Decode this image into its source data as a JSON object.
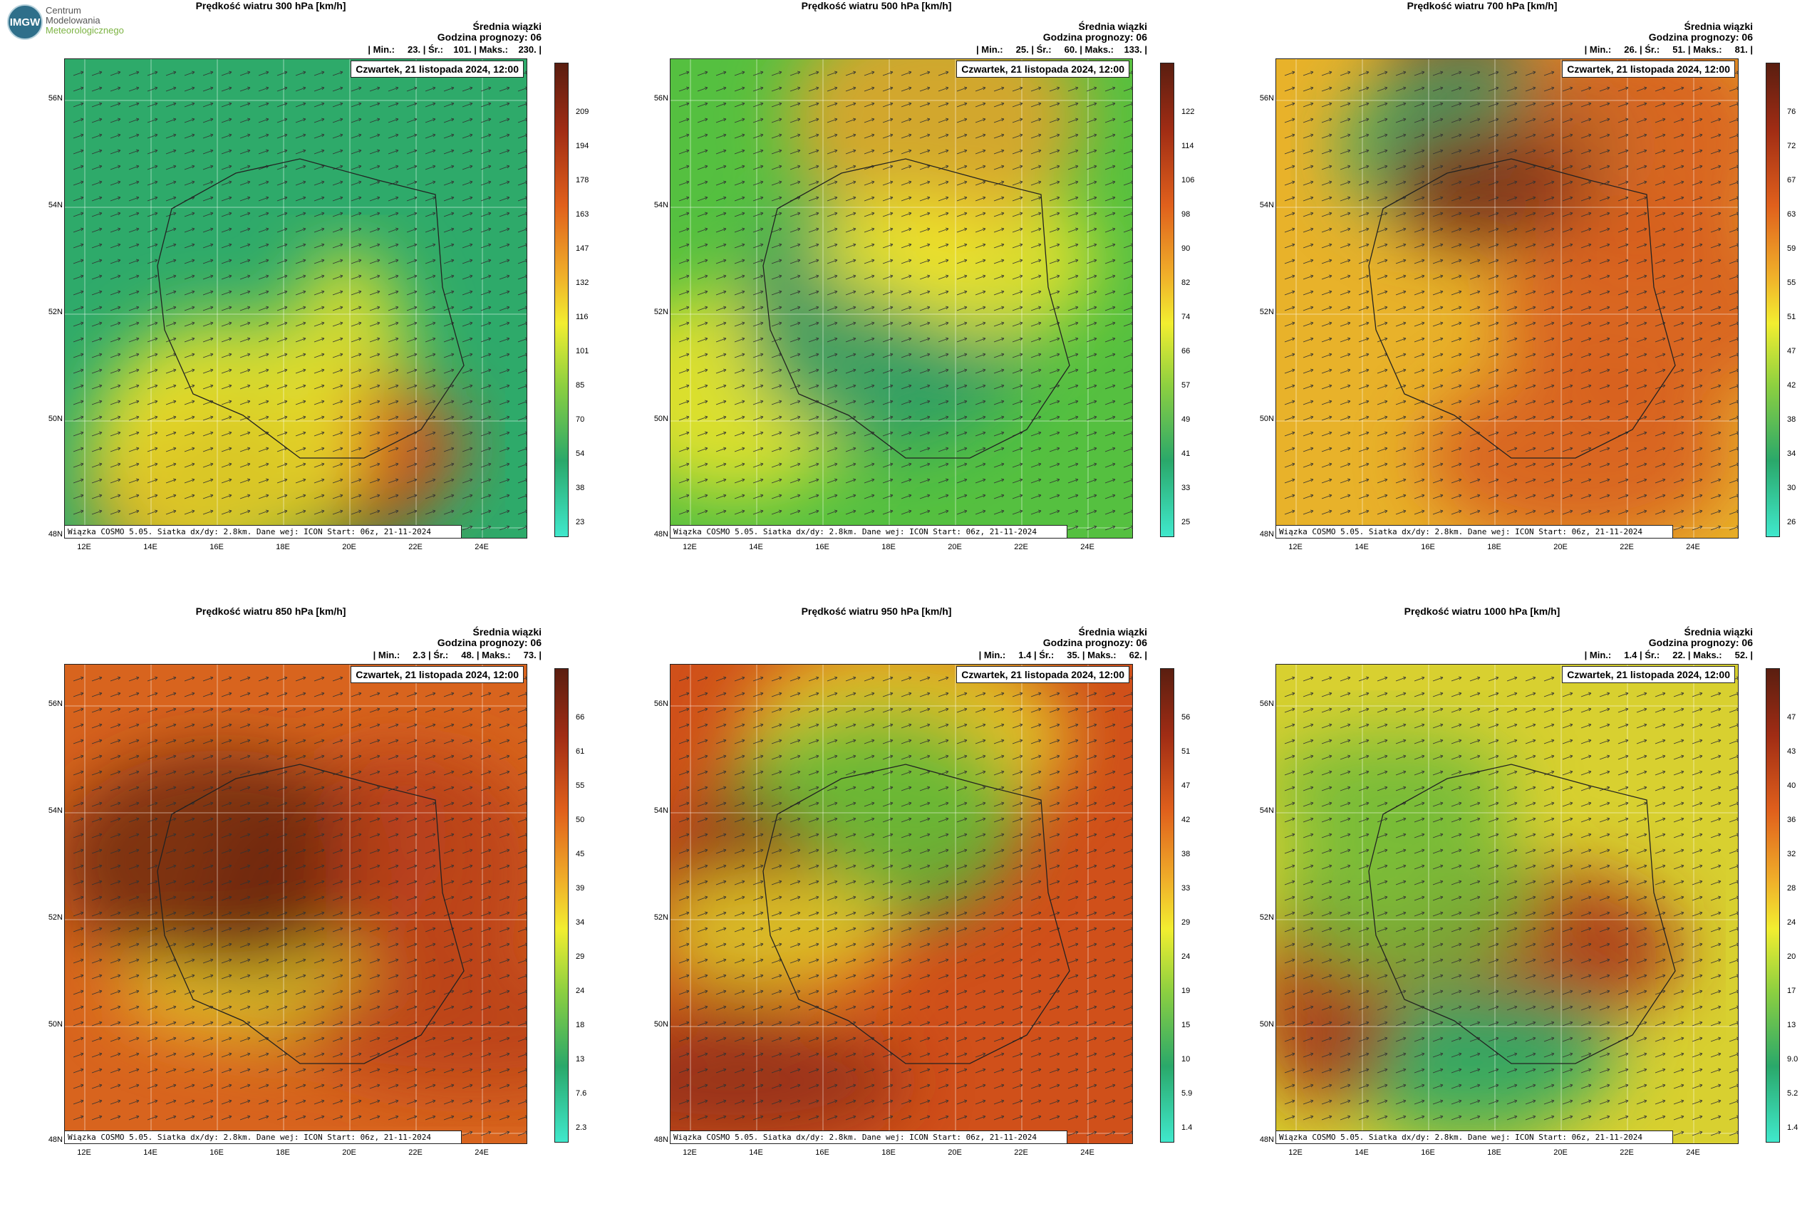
{
  "logo": {
    "badge": "IMGW",
    "line1": "Centrum",
    "line2": "Modelowania",
    "line3": "Meteorologicznego"
  },
  "common": {
    "head_line1": "Średnia wiązki",
    "head_line2": "Godzina prognozy: 06",
    "date": "Czwartek, 21 listopada 2024, 12:00",
    "info": "Wiązka COSMO 5.05. Siatka dx/dy: 2.8km. Dane wej: ICON Start: 06z, 21-11-2024",
    "lat_labels": [
      "56N",
      "54N",
      "52N",
      "50N",
      "48N"
    ],
    "lon_labels": [
      "12E",
      "14E",
      "16E",
      "18E",
      "20E",
      "22E",
      "24E"
    ]
  },
  "panels": [
    {
      "title": "Prędkość wiatru 300 hPa [km/h]",
      "stats": "| Min.:     23. | Śr.:    101. | Maks.:    230. |",
      "ticks": [
        "209",
        "194",
        "178",
        "163",
        "147",
        "132",
        "116",
        "101",
        "85",
        "70",
        "54",
        "38",
        "23"
      ],
      "colors": {
        "bg": "#2eaa6a",
        "a": "#e8e02a",
        "b": "#d4501c",
        "c": "#7a2a10"
      }
    },
    {
      "title": "Prędkość wiatru 500 hPa [km/h]",
      "stats": "| Min.:     25. | Śr.:     60. | Maks.:    133. |",
      "ticks": [
        "122",
        "114",
        "106",
        "98",
        "90",
        "82",
        "74",
        "66",
        "57",
        "49",
        "41",
        "33",
        "25"
      ],
      "colors": {
        "bg": "#55c040",
        "a": "#f2e52a",
        "b": "#e8a22a",
        "c": "#2a9a6a"
      }
    },
    {
      "title": "Prędkość wiatru 700 hPa [km/h]",
      "stats": "| Min.:     26. | Śr.:     51. | Maks.:     81. |",
      "ticks": [
        "76",
        "72",
        "67",
        "63",
        "59",
        "55",
        "51",
        "47",
        "42",
        "38",
        "34",
        "30",
        "26"
      ],
      "colors": {
        "bg": "#e8b22a",
        "a": "#d65a1c",
        "b": "#8a2e14",
        "c": "#2fa86a"
      }
    },
    {
      "title": "Prędkość wiatru 850 hPa [km/h]",
      "stats": "| Min.:     2.3 | Śr.:     48. | Maks.:     73. |",
      "ticks": [
        "66",
        "61",
        "55",
        "50",
        "45",
        "39",
        "34",
        "29",
        "24",
        "18",
        "13",
        "7.6",
        "2.3"
      ],
      "colors": {
        "bg": "#d8641e",
        "a": "#b8401a",
        "b": "#6e2812",
        "c": "#e8d42a"
      }
    },
    {
      "title": "Prędkość wiatru 950 hPa [km/h]",
      "stats": "| Min.:     1.4 | Śr.:     35. | Maks.:     62. |",
      "ticks": [
        "56",
        "51",
        "47",
        "42",
        "38",
        "33",
        "29",
        "24",
        "19",
        "15",
        "10",
        "5.9",
        "1.4"
      ],
      "colors": {
        "bg": "#d0501a",
        "a": "#8e3014",
        "b": "#e8d42a",
        "c": "#58b83a"
      }
    },
    {
      "title": "Prędkość wiatru 1000 hPa [km/h]",
      "stats": "| Min.:     1.4 | Śr.:     22. | Maks.:     52. |",
      "ticks": [
        "47",
        "43",
        "40",
        "36",
        "32",
        "28",
        "24",
        "20",
        "17",
        "13",
        "9.0",
        "5.2",
        "1.4"
      ],
      "colors": {
        "bg": "#d8d030",
        "a": "#6eba3a",
        "b": "#a8301a",
        "c": "#2aa46a"
      }
    }
  ]
}
